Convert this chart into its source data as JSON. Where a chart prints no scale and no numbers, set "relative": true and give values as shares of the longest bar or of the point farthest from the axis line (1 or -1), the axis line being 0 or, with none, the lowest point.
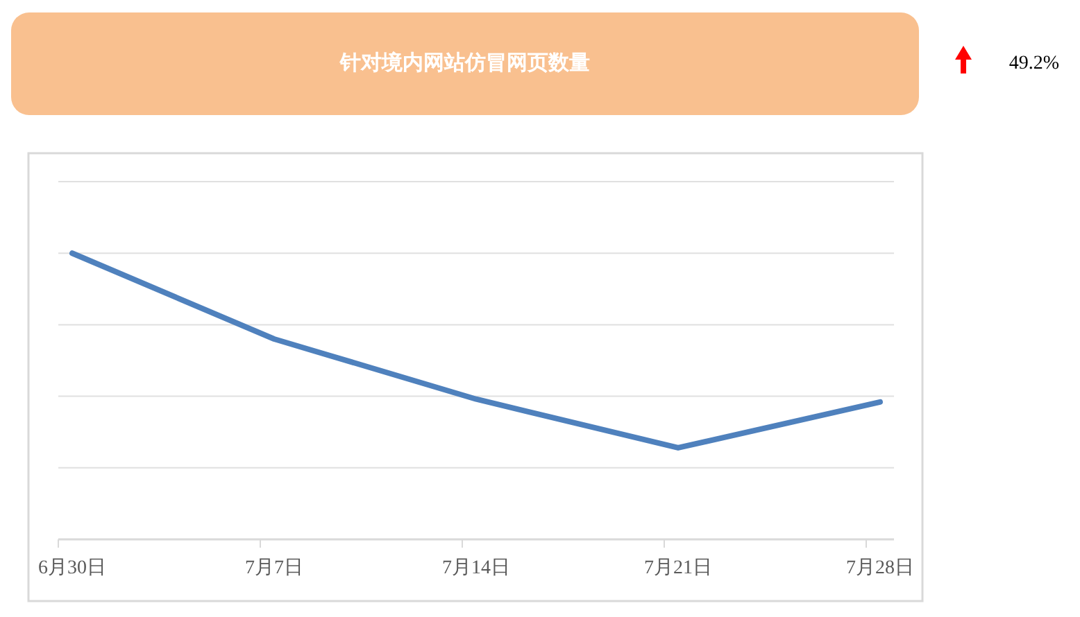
{
  "chart_data": {
    "type": "line",
    "title": "针对境内网站仿冒网页数量",
    "annotations": [
      "49.2%"
    ],
    "categories": [
      "6月30日",
      "7月7日",
      "7月14日",
      "7月21日",
      "7月28日"
    ],
    "series": [
      {
        "color": "#4f81bd",
        "values": [
          1,
          0.7,
          0.49,
          0.32,
          0.48
        ]
      }
    ],
    "relative": true,
    "grid": "y",
    "line_style": "solid"
  }
}
